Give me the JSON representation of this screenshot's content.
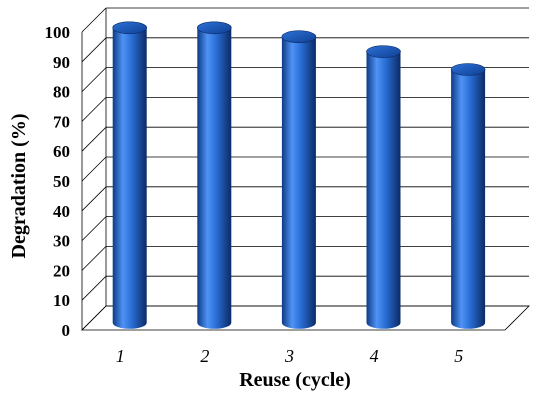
{
  "chart_data": {
    "type": "bar",
    "style": "3d-cylinder",
    "categories": [
      "1",
      "2",
      "3",
      "4",
      "5"
    ],
    "values": [
      99,
      99,
      96,
      91,
      85
    ],
    "xlabel": "Reuse (cycle)",
    "ylabel": "Degradation (%)",
    "ylim": [
      0,
      100
    ],
    "yticks": [
      0,
      10,
      20,
      30,
      40,
      50,
      60,
      70,
      80,
      90,
      100
    ],
    "grid": true,
    "legend": "none",
    "colors": {
      "bar": "#1f5fbf",
      "bar_dark": "#0d2f6e",
      "bar_light": "#5fa0ff",
      "grid": "#000000"
    }
  }
}
